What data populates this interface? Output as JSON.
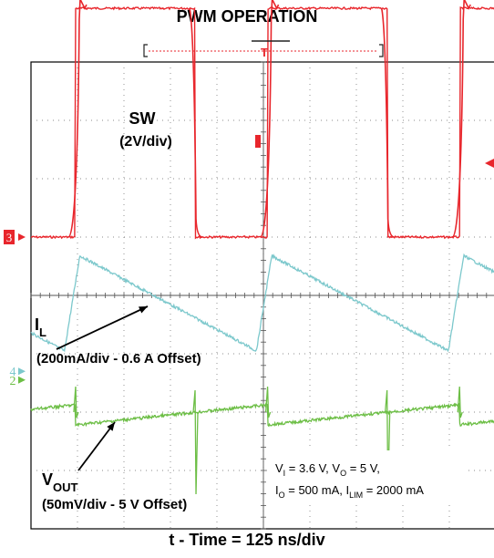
{
  "chart_data": {
    "type": "line",
    "title": "PWM OPERATION",
    "xlabel": "t - Time = 125 ns/div",
    "grid": true,
    "x_divisions": 10,
    "y_divisions": 8,
    "channels": [
      {
        "id": "sw",
        "marker": "3",
        "name": "SW",
        "scale": "(2V/div)",
        "color": "#e8262c",
        "period_div": 4.13,
        "waveform": "square",
        "high_start_div": 0.96,
        "low_start_div": 3.53,
        "low_level_div": 0.0,
        "high_level_div": 3.92
      },
      {
        "id": "il",
        "marker": "4",
        "name": "I",
        "name_sub": "L",
        "scale": "(200mA/div - 0.6 A Offset)",
        "color": "#7cc8cc",
        "period_div": 4.13,
        "waveform": "triangle",
        "peak_div": 1.05,
        "valley_div": 4.85,
        "peak_level_div": 0.68,
        "valley_level_div": -0.95
      },
      {
        "id": "vout",
        "marker": "2",
        "name": "V",
        "name_sub": "OUT",
        "scale": "(50mV/div - 5 V Offset)",
        "color": "#6cbe45",
        "period_div": 4.13,
        "waveform": "ramp-with-spikes",
        "level_div": 0.0
      }
    ],
    "trigger_marker": "T",
    "conditions": [
      {
        "parts": [
          [
            "V",
            ""
          ],
          [
            "I",
            "sub"
          ],
          [
            " = 3.6 V, V",
            ""
          ],
          [
            "O",
            "sub"
          ],
          [
            " = 5 V,",
            ""
          ]
        ]
      },
      {
        "parts": [
          [
            "I",
            ""
          ],
          [
            "O",
            "sub"
          ],
          [
            " = 500 mA, I",
            ""
          ],
          [
            "LIM",
            "sub"
          ],
          [
            " = 2000 mA",
            ""
          ]
        ]
      }
    ]
  }
}
